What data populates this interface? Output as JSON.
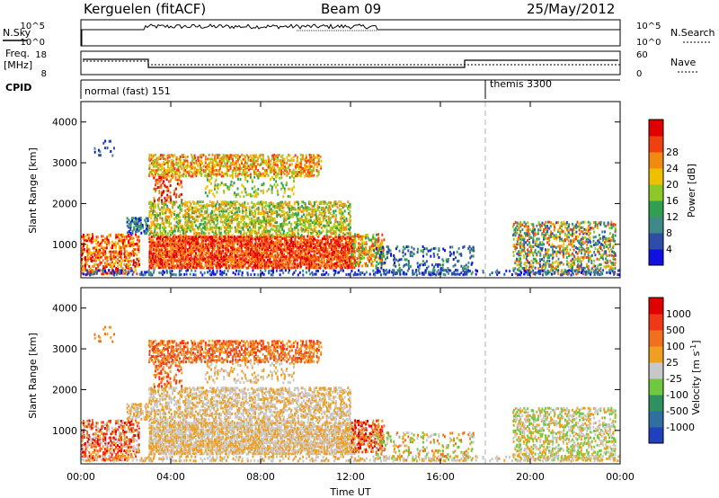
{
  "header": {
    "station": "Kerguelen (fitACF)",
    "beam": "Beam 09",
    "date": "25/May/2012"
  },
  "strips": {
    "nsky_label": "N.Sky",
    "nsearch_label": "N.Search",
    "noise_ticks": [
      "10^5",
      "10^0"
    ],
    "freq_label": "Freq.",
    "freq_unit": "[MHz]",
    "freq_ticks": [
      "18",
      "8"
    ],
    "nave_label": "Nave",
    "nave_ticks": [
      "60",
      "0"
    ],
    "cpid_label": "CPID",
    "cpid_segments": [
      {
        "label": "normal (fast) 151",
        "start_h": 0,
        "end_h": 18
      },
      {
        "label": "themis 3300",
        "start_h": 18,
        "end_h": 24
      }
    ]
  },
  "chart_data": [
    {
      "type": "heatmap",
      "name": "power",
      "ylabel": "Slant Range [km]",
      "ylim": [
        180,
        4500
      ],
      "yticks": [
        "1000",
        "2000",
        "3000",
        "4000"
      ],
      "colorbar": {
        "label": "Power [dB]",
        "ticks": [
          "4",
          "8",
          "12",
          "16",
          "20",
          "24",
          "28"
        ],
        "range": [
          0,
          30
        ],
        "colors": [
          "#1010e0",
          "#2c4ea8",
          "#3f8a88",
          "#30a050",
          "#8ec828",
          "#f0c000",
          "#f08a10",
          "#f04010",
          "#e00000"
        ]
      }
    },
    {
      "type": "heatmap",
      "name": "velocity",
      "ylabel": "Slant Range [km]",
      "xlabel": "Time UT",
      "ylim": [
        180,
        4500
      ],
      "yticks": [
        "1000",
        "2000",
        "3000",
        "4000"
      ],
      "xticks": [
        "00:00",
        "04:00",
        "08:00",
        "12:00",
        "16:00",
        "20:00",
        "00:00"
      ],
      "xlim_hours": [
        0,
        24
      ],
      "colorbar": {
        "label": "Velocity [m s",
        "label_sup": "-1",
        "label_end": "]",
        "ticks": [
          "1000",
          "500",
          "100",
          "25",
          "-25",
          "-100",
          "-500",
          "-1000"
        ],
        "colors": [
          "#2040c0",
          "#3070a0",
          "#309060",
          "#70c840",
          "#c8c8c8",
          "#f0a020",
          "#f07020",
          "#f03818",
          "#e00000"
        ]
      }
    }
  ]
}
